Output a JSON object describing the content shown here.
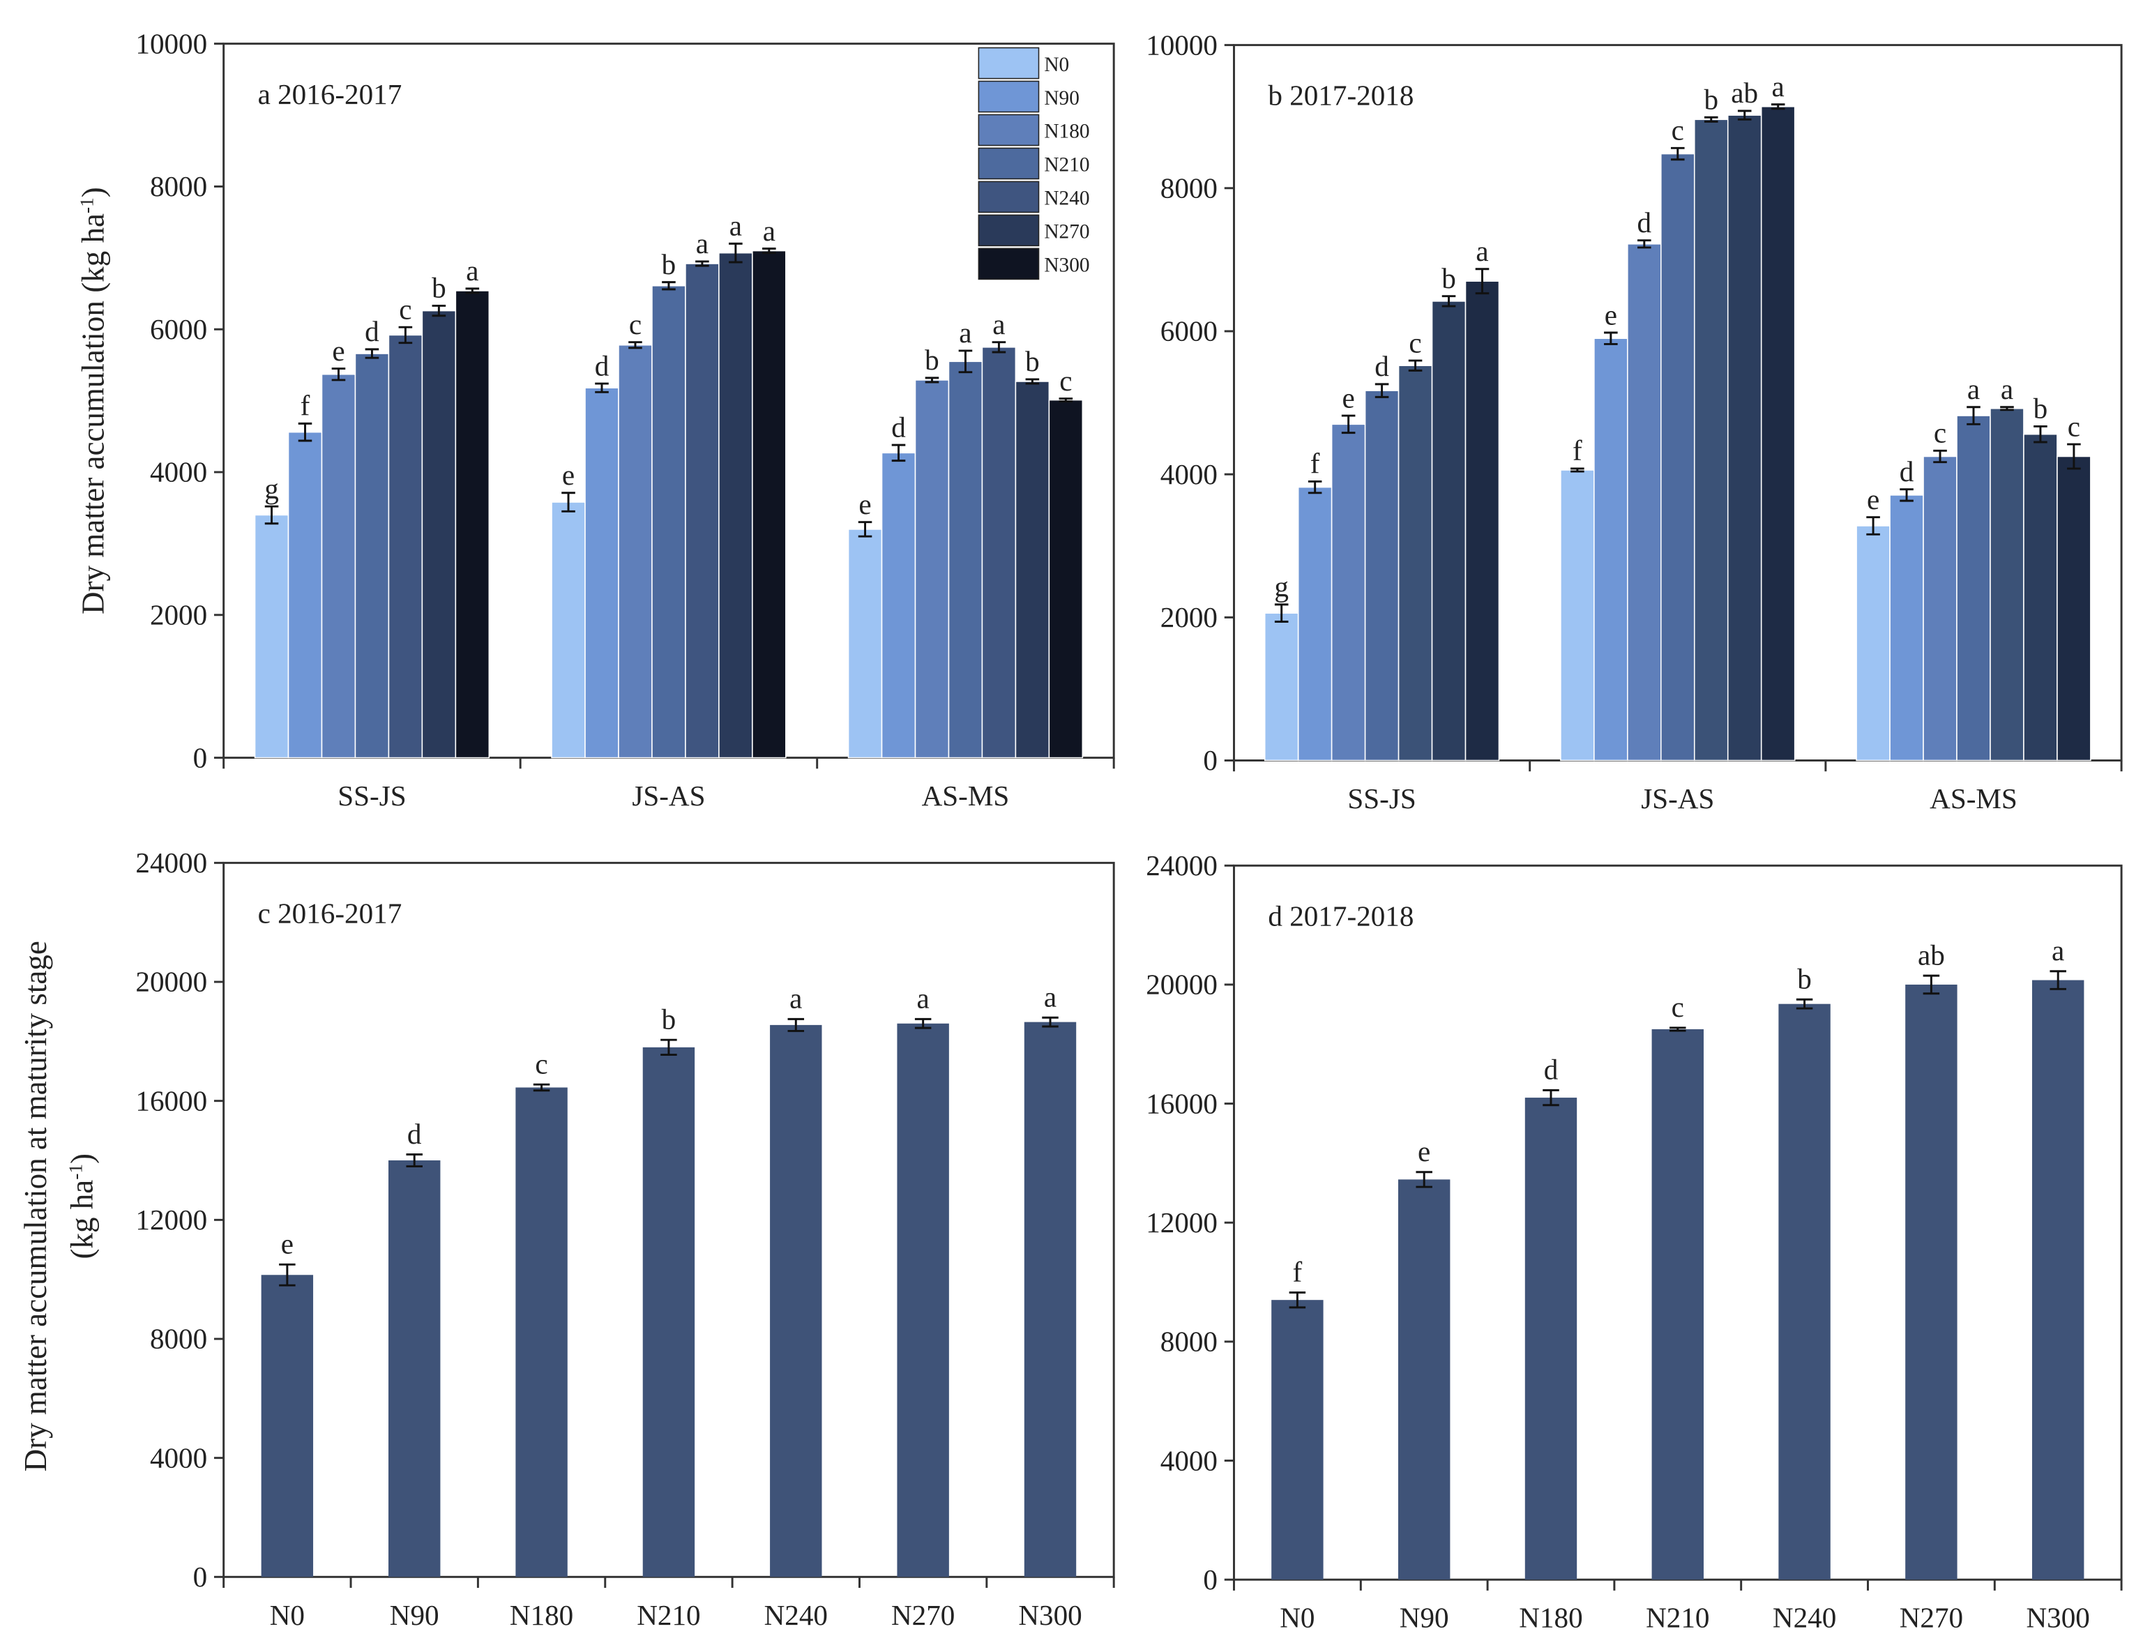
{
  "chart_data": [
    {
      "type": "grouped_bar",
      "title": "a 2016-2017",
      "ylabel": [
        "Dry matter accumulation (kg ha",
        "-1",
        ")"
      ],
      "categories": [
        "SS-JS",
        "JS-AS",
        "AS-MS"
      ],
      "ylim": [
        0,
        10000
      ],
      "yticks": [
        0,
        2000,
        4000,
        6000,
        8000,
        10000
      ],
      "legend": "upper right",
      "series": [
        {
          "name": "N0",
          "color": "#9dc3f3",
          "values": [
            3400,
            3580,
            3200
          ],
          "errors": [
            120,
            130,
            100
          ],
          "letters": [
            "g",
            "e",
            "e"
          ]
        },
        {
          "name": "N90",
          "color": "#6f96d6",
          "values": [
            4560,
            5180,
            4270
          ],
          "errors": [
            120,
            60,
            110
          ],
          "letters": [
            "f",
            "d",
            "d"
          ]
        },
        {
          "name": "N180",
          "color": "#5f7fba",
          "values": [
            5370,
            5780,
            5290
          ],
          "errors": [
            80,
            40,
            30
          ],
          "letters": [
            "e",
            "c",
            "b"
          ]
        },
        {
          "name": "N210",
          "color": "#4d6a9e",
          "values": [
            5660,
            6610,
            5550
          ],
          "errors": [
            60,
            50,
            150
          ],
          "letters": [
            "d",
            "b",
            "a"
          ]
        },
        {
          "name": "N240",
          "color": "#3f5580",
          "values": [
            5920,
            6920,
            5750
          ],
          "errors": [
            110,
            30,
            70
          ],
          "letters": [
            "c",
            "a",
            "a"
          ]
        },
        {
          "name": "N270",
          "color": "#2a3a5a",
          "values": [
            6260,
            7070,
            5270
          ],
          "errors": [
            70,
            130,
            30
          ],
          "letters": [
            "b",
            "a",
            "b"
          ]
        },
        {
          "name": "N300",
          "color": "#0f1422",
          "values": [
            6540,
            7100,
            5010
          ],
          "errors": [
            30,
            30,
            20
          ],
          "letters": [
            "a",
            "a",
            "c"
          ]
        }
      ]
    },
    {
      "type": "grouped_bar",
      "title": "b 2017-2018",
      "categories": [
        "SS-JS",
        "JS-AS",
        "AS-MS"
      ],
      "ylim": [
        0,
        10000
      ],
      "yticks": [
        0,
        2000,
        4000,
        6000,
        8000,
        10000
      ],
      "series": [
        {
          "name": "N0",
          "color": "#9dc3f3",
          "values": [
            2060,
            4060,
            3280
          ],
          "errors": [
            120,
            20,
            120
          ],
          "letters": [
            "g",
            "f",
            "e"
          ]
        },
        {
          "name": "N90",
          "color": "#6f96d6",
          "values": [
            3820,
            5900,
            3710
          ],
          "errors": [
            80,
            80,
            80
          ],
          "letters": [
            "f",
            "e",
            "d"
          ]
        },
        {
          "name": "N180",
          "color": "#5f7fba",
          "values": [
            4700,
            7220,
            4250
          ],
          "errors": [
            120,
            50,
            80
          ],
          "letters": [
            "e",
            "d",
            "c"
          ]
        },
        {
          "name": "N210",
          "color": "#4d6a9e",
          "values": [
            5170,
            8480,
            4820
          ],
          "errors": [
            90,
            80,
            120
          ],
          "letters": [
            "d",
            "c",
            "a"
          ]
        },
        {
          "name": "N240",
          "color": "#3b5277",
          "values": [
            5520,
            8960,
            4920
          ],
          "errors": [
            70,
            30,
            20
          ],
          "letters": [
            "c",
            "b",
            "a"
          ]
        },
        {
          "name": "N270",
          "color": "#2c3e5e",
          "values": [
            6420,
            9020,
            4560
          ],
          "errors": [
            70,
            60,
            110
          ],
          "letters": [
            "b",
            "ab",
            "b"
          ]
        },
        {
          "name": "N300",
          "color": "#1e2b45",
          "values": [
            6700,
            9140,
            4250
          ],
          "errors": [
            170,
            30,
            170
          ],
          "letters": [
            "a",
            "a",
            "c"
          ]
        }
      ]
    },
    {
      "type": "bar",
      "title": "c 2016-2017",
      "ylabel": [
        "Dry matter accumulation at maturity stage",
        "(kg ha",
        "-1",
        ")"
      ],
      "categories": [
        "N0",
        "N90",
        "N180",
        "N210",
        "N240",
        "N270",
        "N300"
      ],
      "ylim": [
        0,
        24000
      ],
      "yticks": [
        0,
        4000,
        8000,
        12000,
        16000,
        20000,
        24000
      ],
      "color": "#3f5378",
      "values": [
        10150,
        14000,
        16450,
        17800,
        18550,
        18600,
        18650
      ],
      "errors": [
        350,
        200,
        100,
        250,
        200,
        150,
        150
      ],
      "letters": [
        "e",
        "d",
        "c",
        "b",
        "a",
        "a",
        "a"
      ]
    },
    {
      "type": "bar",
      "title": "d 2017-2018",
      "categories": [
        "N0",
        "N90",
        "N180",
        "N210",
        "N240",
        "N270",
        "N300"
      ],
      "ylim": [
        0,
        24000
      ],
      "yticks": [
        0,
        4000,
        8000,
        12000,
        16000,
        20000,
        24000
      ],
      "color": "#3f5378",
      "values": [
        9400,
        13450,
        16200,
        18500,
        19350,
        20000,
        20150
      ],
      "errors": [
        250,
        250,
        250,
        50,
        150,
        300,
        300
      ],
      "letters": [
        "f",
        "e",
        "d",
        "c",
        "b",
        "ab",
        "a"
      ]
    }
  ]
}
